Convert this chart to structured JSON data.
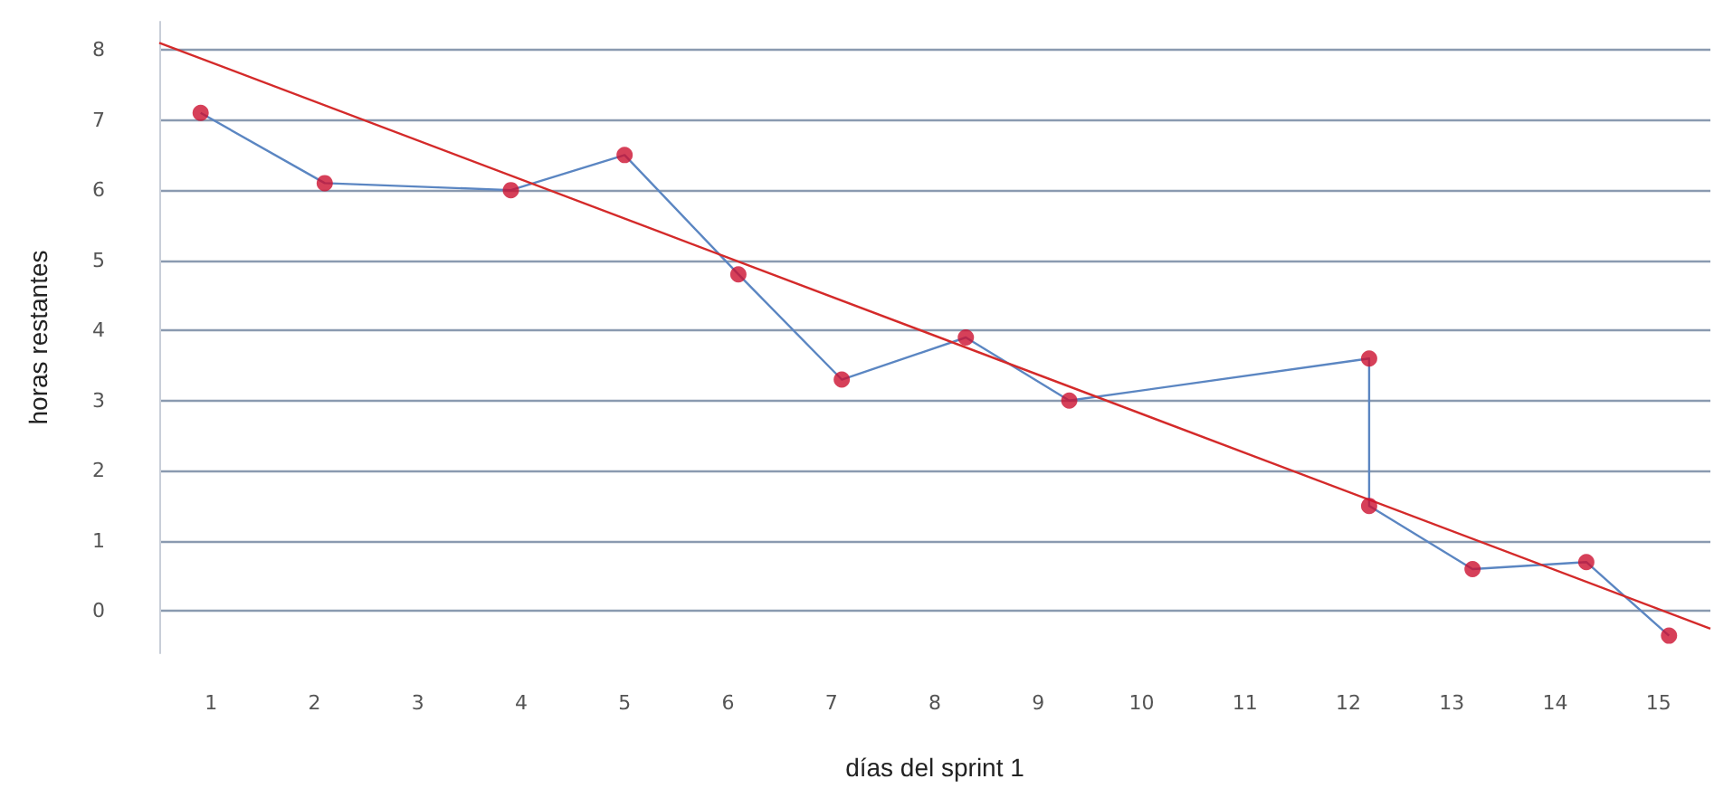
{
  "chart_data": {
    "type": "line",
    "xlabel": "días del sprint 1",
    "ylabel": "horas restantes",
    "xlim": [
      0.5,
      15.5
    ],
    "xticks": [
      1,
      2,
      3,
      4,
      5,
      6,
      7,
      8,
      9,
      10,
      11,
      12,
      13,
      14,
      15
    ],
    "ylim": [
      -0.6,
      8.4
    ],
    "yticks": [
      0,
      1,
      2,
      3,
      4,
      5,
      6,
      7,
      8
    ],
    "grid": "y",
    "series": [
      {
        "color": "#5b86c2",
        "marker": "none",
        "x": [
          0.9,
          2.1,
          3.9,
          5.0,
          6.1,
          7.1,
          8.3,
          9.3,
          12.2,
          12.2,
          13.2,
          14.3,
          15.1
        ],
        "values": [
          7.1,
          6.1,
          6.0,
          6.5,
          4.8,
          3.3,
          3.9,
          3.0,
          3.6,
          1.5,
          0.6,
          0.7,
          -0.35
        ]
      },
      {
        "type": "scatter",
        "color": "#cc1030",
        "marker": "circle",
        "x": [
          0.9,
          2.1,
          3.9,
          5.0,
          6.1,
          7.1,
          8.3,
          9.3,
          12.2,
          12.2,
          13.2,
          14.3,
          15.1
        ],
        "values": [
          7.1,
          6.1,
          6.0,
          6.5,
          4.8,
          3.3,
          3.9,
          3.0,
          3.6,
          1.5,
          0.6,
          0.7,
          -0.35
        ]
      },
      {
        "type": "line",
        "color": "#d42a2a",
        "marker": "none",
        "x": [
          0.5,
          15.5
        ],
        "values": [
          8.1,
          -0.25
        ]
      }
    ]
  }
}
